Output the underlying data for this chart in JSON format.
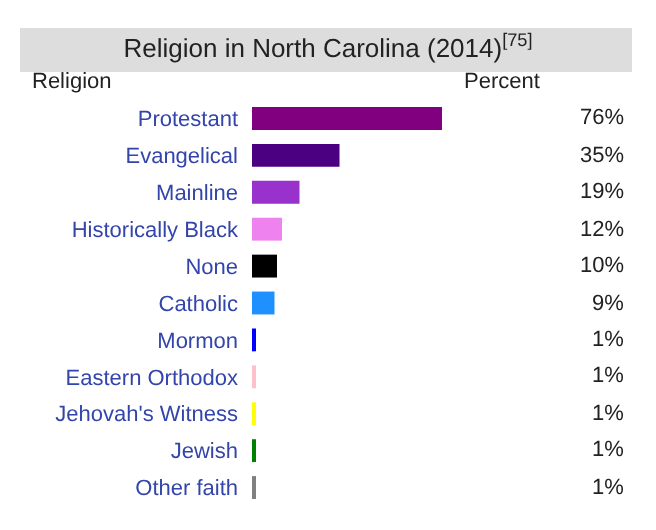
{
  "chart_data": {
    "type": "bar",
    "orientation": "horizontal",
    "title": "Religion in North Carolina (2014)$^{[75]}$",
    "categories": [
      "Protestant",
      "Evangelical",
      "Mainline",
      "Historically Black",
      "None",
      "Catholic",
      "Mormon",
      "Eastern Orthodox",
      "Jehovah's Witness",
      "Jewish",
      "Other faith"
    ],
    "values": [
      76,
      35,
      19,
      12,
      10,
      9,
      1,
      1,
      1,
      1,
      1
    ],
    "colors": [
      "#800080",
      "#4b0082",
      "#9932cc",
      "#ee82ee",
      "#000000",
      "#1e90ff",
      "#0000ff",
      "#ffc0cb",
      "#ffff00",
      "#008000",
      "#808080"
    ],
    "value_labels": [
      "76%",
      "35%",
      "19%",
      "12%",
      "10%",
      "9%",
      "1%",
      "1%",
      "1%",
      "1%",
      "1%"
    ],
    "tick_labels": "y",
    "annotations": [
      "Religion",
      "Percent"
    ]
  }
}
